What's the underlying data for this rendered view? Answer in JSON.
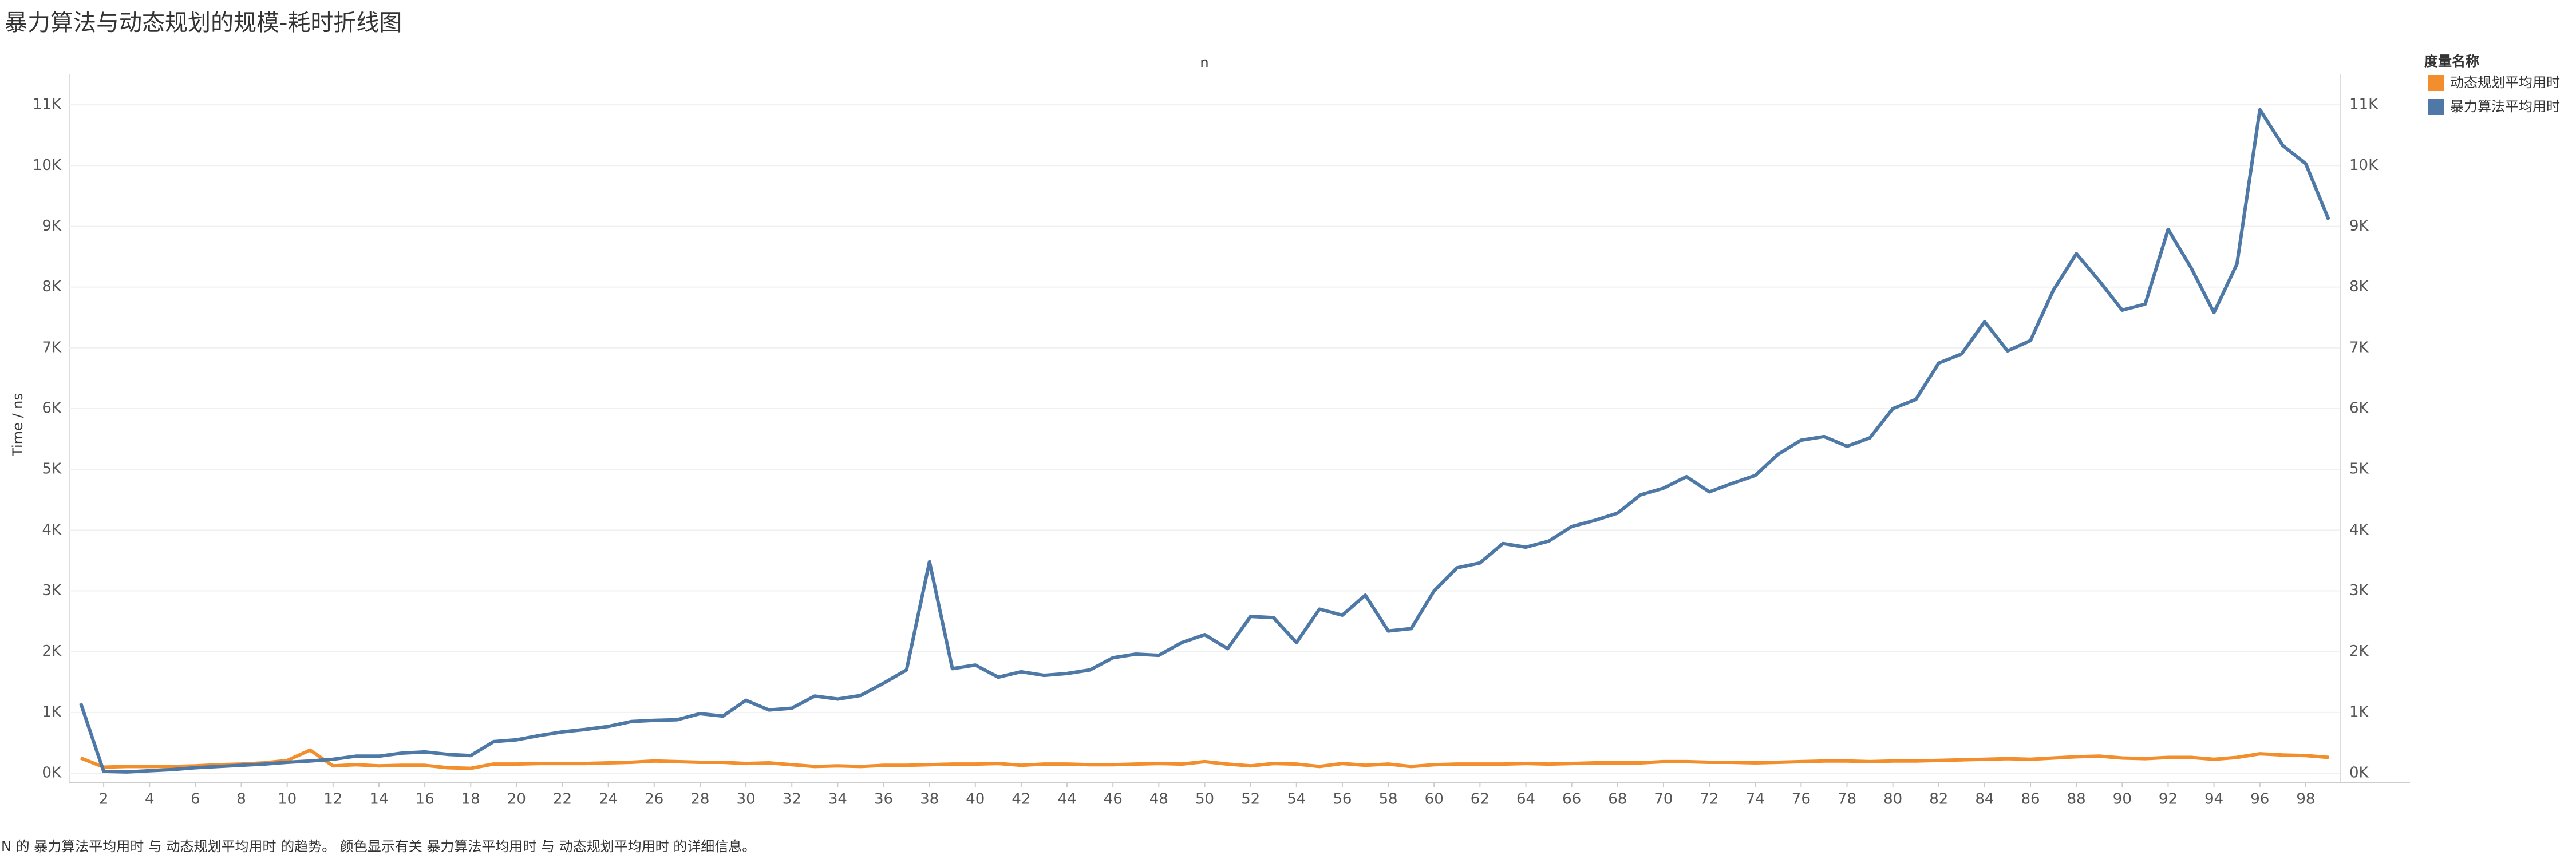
{
  "chart_data": {
    "type": "line",
    "title": "暴力算法与动态规划的规模-耗时折线图",
    "x_header": "n",
    "y_label": "Time / ns",
    "legend_title": "度量名称",
    "caption": "N 的 暴力算法平均用时 与 动态规划平均用时 的趋势。 颜色显示有关 暴力算法平均用时 与 动态规划平均用时 的详细信息。",
    "legend": "right",
    "grid": true,
    "x": [
      1,
      2,
      3,
      4,
      5,
      6,
      7,
      8,
      9,
      10,
      11,
      12,
      13,
      14,
      15,
      16,
      17,
      18,
      19,
      20,
      21,
      22,
      23,
      24,
      25,
      26,
      27,
      28,
      29,
      30,
      31,
      32,
      33,
      34,
      35,
      36,
      37,
      38,
      39,
      40,
      41,
      42,
      43,
      44,
      45,
      46,
      47,
      48,
      49,
      50,
      51,
      52,
      53,
      54,
      55,
      56,
      57,
      58,
      59,
      60,
      61,
      62,
      63,
      64,
      65,
      66,
      67,
      68,
      69,
      70,
      71,
      72,
      73,
      74,
      75,
      76,
      77,
      78,
      79,
      80,
      81,
      82,
      83,
      84,
      85,
      86,
      87,
      88,
      89,
      90,
      91,
      92,
      93,
      94,
      95,
      96,
      97,
      98,
      99
    ],
    "series": [
      {
        "name": "动态规划平均用时",
        "color": "#f28e2b",
        "values": [
          250,
          100,
          110,
          110,
          110,
          120,
          140,
          150,
          170,
          210,
          380,
          120,
          140,
          120,
          130,
          130,
          90,
          80,
          150,
          150,
          160,
          160,
          160,
          170,
          180,
          200,
          190,
          180,
          180,
          160,
          170,
          140,
          110,
          120,
          110,
          130,
          130,
          140,
          150,
          150,
          160,
          130,
          150,
          150,
          140,
          140,
          150,
          160,
          150,
          190,
          150,
          120,
          160,
          150,
          110,
          160,
          130,
          150,
          110,
          140,
          150,
          150,
          150,
          160,
          150,
          160,
          170,
          170,
          170,
          190,
          190,
          180,
          180,
          170,
          180,
          190,
          200,
          200,
          190,
          200,
          200,
          210,
          220,
          230,
          240,
          230,
          250,
          270,
          280,
          250,
          240,
          260,
          260,
          230,
          260,
          320,
          300,
          290,
          260
        ]
      },
      {
        "name": "暴力算法平均用时",
        "color": "#4e79a7",
        "values": [
          1150,
          30,
          20,
          40,
          60,
          90,
          110,
          130,
          150,
          180,
          200,
          230,
          280,
          280,
          330,
          350,
          310,
          290,
          520,
          550,
          620,
          680,
          720,
          770,
          850,
          870,
          880,
          980,
          940,
          1200,
          1040,
          1070,
          1270,
          1220,
          1280,
          1480,
          1700,
          3480,
          1720,
          1780,
          1580,
          1670,
          1610,
          1640,
          1700,
          1900,
          1960,
          1940,
          2150,
          2280,
          2050,
          2580,
          2560,
          2150,
          2700,
          2600,
          2930,
          2340,
          2380,
          3000,
          3380,
          3460,
          3780,
          3720,
          3820,
          4060,
          4160,
          4280,
          4580,
          4690,
          4880,
          4630,
          4770,
          4900,
          5250,
          5480,
          5540,
          5380,
          5520,
          6000,
          6150,
          6750,
          6900,
          7430,
          6950,
          7120,
          7950,
          8550,
          8100,
          7620,
          7720,
          8950,
          8320,
          7580,
          8380,
          10920,
          10330,
          10030,
          9110
        ]
      }
    ],
    "xlim": [
      0.5,
      99.5
    ],
    "xticks": [
      2,
      4,
      6,
      8,
      10,
      12,
      14,
      16,
      18,
      20,
      22,
      24,
      26,
      28,
      30,
      32,
      34,
      36,
      38,
      40,
      42,
      44,
      46,
      48,
      50,
      52,
      54,
      56,
      58,
      60,
      62,
      64,
      66,
      68,
      70,
      72,
      74,
      76,
      78,
      80,
      82,
      84,
      86,
      88,
      90,
      92,
      94,
      96,
      98
    ],
    "ylim": [
      -150,
      11500
    ],
    "yticks": [
      {
        "value": 0,
        "label": "0K"
      },
      {
        "value": 1000,
        "label": "1K"
      },
      {
        "value": 2000,
        "label": "2K"
      },
      {
        "value": 3000,
        "label": "3K"
      },
      {
        "value": 4000,
        "label": "4K"
      },
      {
        "value": 5000,
        "label": "5K"
      },
      {
        "value": 6000,
        "label": "6K"
      },
      {
        "value": 7000,
        "label": "7K"
      },
      {
        "value": 8000,
        "label": "8K"
      },
      {
        "value": 9000,
        "label": "9K"
      },
      {
        "value": 10000,
        "label": "10K"
      },
      {
        "value": 11000,
        "label": "11K"
      }
    ]
  }
}
